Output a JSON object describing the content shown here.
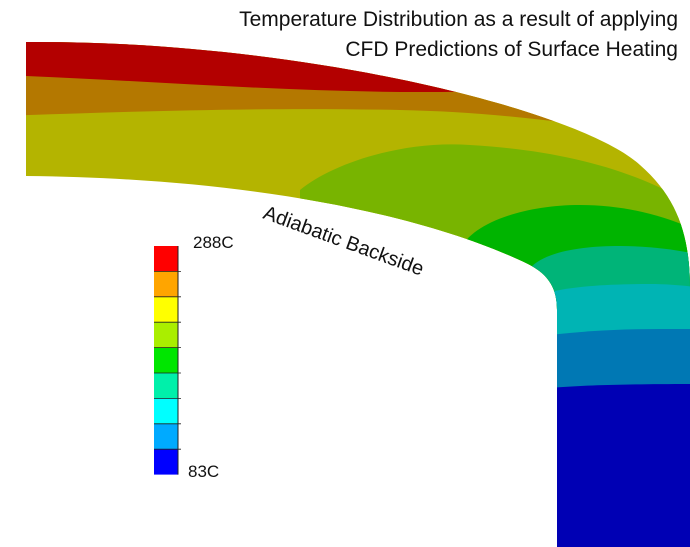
{
  "title_line1": "Temperature Distribution as a result of applying",
  "title_line2": "CFD Predictions of Surface Heating",
  "backside_label": "Adiabatic Backside",
  "legend": {
    "max_label": "288C",
    "min_label": "83C",
    "bands": [
      "#ff0000",
      "#ffa500",
      "#ffff00",
      "#aaee00",
      "#00e600",
      "#00f0aa",
      "#00ffff",
      "#00aaff",
      "#0000ff"
    ]
  },
  "band_colors": {
    "red": "#b30000",
    "orange": "#b47800",
    "olive": "#b4b400",
    "yellow_green": "#78b400",
    "green": "#00b400",
    "teal_green": "#00b478",
    "cyan": "#00b4b4",
    "steel_blue": "#0078b4",
    "blue": "#0000b4"
  }
}
